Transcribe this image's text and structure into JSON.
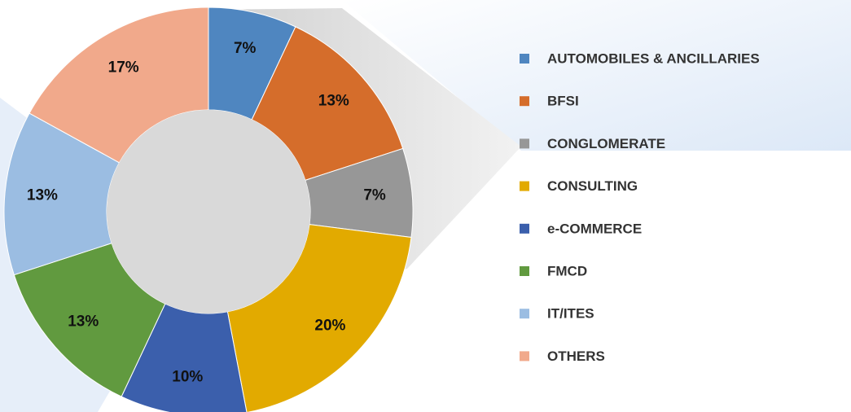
{
  "chart_data": {
    "type": "donut",
    "categories": [
      "AUTOMOBILES & ANCILLARIES",
      "BFSI",
      "CONGLOMERATE",
      "CONSULTING",
      "e-COMMERCE",
      "FMCD",
      "IT/ITES",
      "OTHERS"
    ],
    "values": [
      7,
      13,
      7,
      20,
      10,
      13,
      13,
      17
    ],
    "value_labels": [
      "7%",
      "13%",
      "7%",
      "20%",
      "10%",
      "13%",
      "13%",
      "17%"
    ],
    "colors": [
      "#4f86c0",
      "#d56d2b",
      "#979797",
      "#e2aa00",
      "#3b5fac",
      "#619a3f",
      "#9bbde2",
      "#f1a98b"
    ],
    "legend": "right"
  }
}
